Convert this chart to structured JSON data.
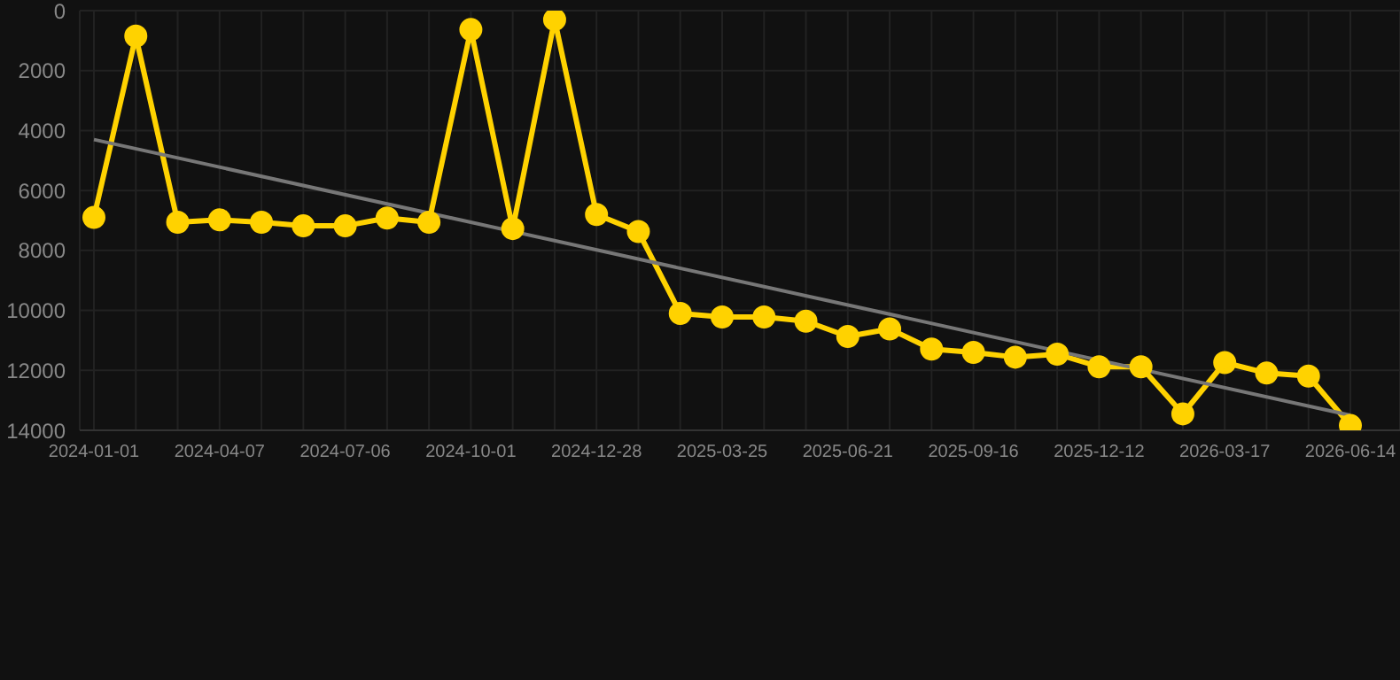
{
  "chart_data": {
    "type": "line",
    "categories": [
      "2024-01-01",
      null,
      null,
      "2024-04-07",
      null,
      null,
      "2024-07-06",
      null,
      null,
      "2024-10-01",
      null,
      null,
      "2024-12-28",
      null,
      null,
      "2025-03-25",
      null,
      null,
      "2025-06-21",
      null,
      null,
      "2025-09-16",
      null,
      null,
      "2025-12-12",
      null,
      null,
      "2026-03-17",
      null,
      null,
      "2026-06-14"
    ],
    "series": [
      {
        "color": "#ffd200",
        "marker": "circle",
        "values": [
          6900,
          850,
          7060,
          6980,
          7060,
          7180,
          7180,
          6920,
          7060,
          630,
          7270,
          300,
          6800,
          7370,
          10100,
          10220,
          10220,
          10360,
          10870,
          10620,
          11290,
          11400,
          11560,
          11460,
          11880,
          11880,
          13450,
          11740,
          12090,
          12190,
          13840
        ]
      },
      {
        "color": "#777777",
        "marker": "none",
        "values": [
          4300,
          null,
          null,
          null,
          null,
          null,
          null,
          null,
          null,
          null,
          null,
          null,
          null,
          null,
          null,
          null,
          null,
          null,
          null,
          null,
          null,
          null,
          null,
          null,
          null,
          null,
          null,
          null,
          null,
          null,
          13500
        ]
      }
    ],
    "ylim": [
      14000,
      0
    ],
    "yticks": [
      0,
      2000,
      4000,
      6000,
      8000,
      10000,
      12000,
      14000
    ],
    "grid": true,
    "line_style": "solid"
  }
}
